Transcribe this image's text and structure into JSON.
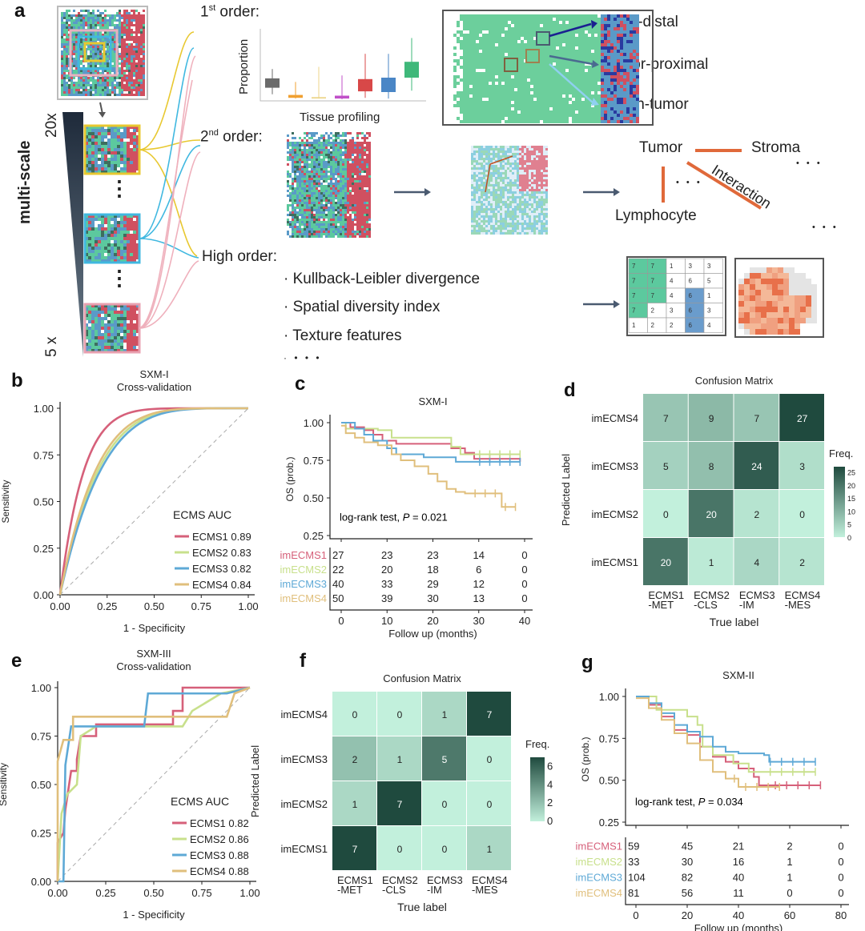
{
  "panel_labels": {
    "a": "a",
    "b": "b",
    "c": "c",
    "d": "d",
    "e": "e",
    "f": "f",
    "g": "g"
  },
  "panel_a": {
    "first_order": {
      "num": "1",
      "sup": "st",
      "text": " order:"
    },
    "second_order": {
      "num": "2",
      "sup": "nd",
      "text": " order:"
    },
    "high_order": "High order:",
    "scale_label": "multi-scale",
    "scale_top": "20x",
    "scale_bottom": "5 x",
    "ellipsis_vertical": "⋮",
    "boxplot_ylabel": "Proportion",
    "boxplot_xlabel": "Tissue profiling",
    "boxplot_colors": [
      "#6b6b6b",
      "#f0a030",
      "#ecd58a",
      "#c050c8",
      "#d84848",
      "#4a86c6",
      "#3fb87a"
    ],
    "region_labels": [
      "Tumor-distal",
      "Tumor-proximal",
      "Within-tumor"
    ],
    "interaction": {
      "tumor": "Tumor",
      "stroma": "Stroma",
      "lymphocyte": "Lymphocyte",
      "interaction": "Interaction",
      "dots": "• • •"
    },
    "high_order_items": [
      "· Kullback-Leibler divergence",
      "· Spatial diversity index",
      "· Texture features",
      "·  •  •  •"
    ],
    "texture_grid": [
      [
        7,
        7,
        1,
        3,
        3
      ],
      [
        7,
        7,
        4,
        6,
        5
      ],
      [
        7,
        7,
        4,
        6,
        1
      ],
      [
        7,
        2,
        3,
        6,
        3
      ],
      [
        1,
        2,
        2,
        6,
        4
      ]
    ],
    "colors": {
      "tumor": "#d05060",
      "green": "#5cc99e",
      "blue": "#5a9ac8",
      "orange": "#e0693a",
      "arrow": "#4a5a70",
      "yellow": "#e8c830",
      "cyan": "#40b8e0",
      "pink": "#e8a0b0"
    }
  },
  "chart_data": [
    {
      "id": "b",
      "type": "line",
      "title": "SXM-I",
      "subtitle": "Cross-validation",
      "xlabel": "1 - Specificity",
      "ylabel": "Sensitivity",
      "xlim": [
        0,
        1
      ],
      "ylim": [
        0,
        1
      ],
      "xticks": [
        "0.00",
        "0.25",
        "0.50",
        "0.75",
        "1.00"
      ],
      "yticks": [
        "0.00",
        "0.25",
        "0.50",
        "0.75",
        "1.00"
      ],
      "legend_title": "ECMS AUC",
      "legend_position": "bottom-right",
      "series": [
        {
          "name": "ECMS1 0.89",
          "auc": 0.89,
          "color": "#d6607a"
        },
        {
          "name": "ECMS2 0.83",
          "auc": 0.83,
          "color": "#c8e08c"
        },
        {
          "name": "ECMS3 0.82",
          "auc": 0.82,
          "color": "#5ea9d6"
        },
        {
          "name": "ECMS4 0.84",
          "auc": 0.84,
          "color": "#e0bf7c"
        }
      ]
    },
    {
      "id": "c",
      "type": "line",
      "title": "SXM-I",
      "xlabel": "Follow up (months)",
      "ylabel": "OS (prob.)",
      "xlim": [
        0,
        40
      ],
      "ylim": [
        0.25,
        1
      ],
      "xticks": [
        "0",
        "10",
        "20",
        "30",
        "40"
      ],
      "yticks": [
        "0.25",
        "0.50",
        "0.75",
        "1.00"
      ],
      "annotation": {
        "prefix": "log-rank test, ",
        "p": "P",
        "suffix": " = 0.021"
      },
      "series": [
        {
          "name": "imECMS1",
          "color": "#d6607a",
          "risk": [
            27,
            23,
            23,
            14,
            0
          ],
          "points": [
            [
              0,
              1
            ],
            [
              2,
              0.97
            ],
            [
              5,
              0.95
            ],
            [
              7,
              0.92
            ],
            [
              9,
              0.88
            ],
            [
              12,
              0.86
            ],
            [
              24,
              0.83
            ],
            [
              27,
              0.8
            ],
            [
              29,
              0.76
            ],
            [
              39,
              0.74
            ]
          ]
        },
        {
          "name": "imECMS2",
          "color": "#c8e08c",
          "risk": [
            22,
            20,
            18,
            6,
            0
          ],
          "points": [
            [
              0,
              1
            ],
            [
              1,
              0.96
            ],
            [
              8,
              0.95
            ],
            [
              11,
              0.9
            ],
            [
              24,
              0.84
            ],
            [
              26,
              0.79
            ],
            [
              39,
              0.79
            ]
          ]
        },
        {
          "name": "imECMS3",
          "color": "#5ea9d6",
          "risk": [
            40,
            33,
            29,
            12,
            0
          ],
          "points": [
            [
              0,
              1
            ],
            [
              3,
              0.96
            ],
            [
              5,
              0.92
            ],
            [
              7,
              0.88
            ],
            [
              10,
              0.83
            ],
            [
              12,
              0.79
            ],
            [
              18,
              0.77
            ],
            [
              25,
              0.74
            ],
            [
              39,
              0.74
            ]
          ]
        },
        {
          "name": "imECMS4",
          "color": "#e0bf7c",
          "risk": [
            50,
            39,
            30,
            13,
            0
          ],
          "points": [
            [
              0,
              0.98
            ],
            [
              1,
              0.93
            ],
            [
              3,
              0.9
            ],
            [
              5,
              0.87
            ],
            [
              8,
              0.85
            ],
            [
              11,
              0.79
            ],
            [
              13,
              0.75
            ],
            [
              16,
              0.71
            ],
            [
              19,
              0.66
            ],
            [
              21,
              0.61
            ],
            [
              23,
              0.56
            ],
            [
              25,
              0.54
            ],
            [
              27,
              0.53
            ],
            [
              35,
              0.44
            ],
            [
              38,
              0.44
            ]
          ]
        }
      ]
    },
    {
      "id": "d",
      "type": "heatmap",
      "title": "Confusion Matrix",
      "xlabel": "True label",
      "ylabel": "Predicted Label",
      "x_categories": [
        [
          "ECMS1",
          "-MET"
        ],
        [
          "ECMS2",
          "-CLS"
        ],
        [
          "ECMS3",
          "-IM"
        ],
        [
          "ECMS4",
          "-MES"
        ]
      ],
      "y_categories": [
        "imECMS4",
        "imECMS3",
        "imECMS2",
        "imECMS1"
      ],
      "values": [
        [
          7,
          9,
          7,
          27
        ],
        [
          5,
          8,
          24,
          3
        ],
        [
          0,
          20,
          2,
          0
        ],
        [
          20,
          1,
          4,
          2
        ]
      ],
      "legend_title": "Freq.",
      "legend_ticks": [
        "25",
        "20",
        "15",
        "10",
        "5",
        "0"
      ],
      "range": [
        0,
        27
      ]
    },
    {
      "id": "e",
      "type": "line",
      "title": "SXM-III",
      "subtitle": "Cross-validation",
      "xlabel": "1 - Specificity",
      "ylabel": "Sensitivity",
      "xlim": [
        0,
        1
      ],
      "ylim": [
        0,
        1
      ],
      "xticks": [
        "0.00",
        "0.25",
        "0.50",
        "0.75",
        "1.00"
      ],
      "yticks": [
        "0.00",
        "0.25",
        "0.50",
        "0.75",
        "1.00"
      ],
      "legend_title": "ECMS AUC",
      "legend_position": "bottom-right",
      "series": [
        {
          "name": "ECMS1 0.82",
          "color": "#d6607a",
          "points": [
            [
              0,
              0
            ],
            [
              0,
              0.2
            ],
            [
              0.03,
              0.25
            ],
            [
              0.04,
              0.37
            ],
            [
              0.07,
              0.57
            ],
            [
              0.1,
              0.57
            ],
            [
              0.1,
              0.63
            ],
            [
              0.12,
              0.75
            ],
            [
              0.2,
              0.75
            ],
            [
              0.2,
              0.81
            ],
            [
              0.6,
              0.81
            ],
            [
              0.6,
              0.88
            ],
            [
              0.65,
              0.88
            ],
            [
              0.65,
              1
            ],
            [
              1,
              1
            ]
          ]
        },
        {
          "name": "ECMS2 0.86",
          "color": "#c8e08c",
          "points": [
            [
              0,
              0
            ],
            [
              0.02,
              0.35
            ],
            [
              0.05,
              0.45
            ],
            [
              0.1,
              0.5
            ],
            [
              0.12,
              0.75
            ],
            [
              0.2,
              0.8
            ],
            [
              0.65,
              0.8
            ],
            [
              0.7,
              0.88
            ],
            [
              0.85,
              0.97
            ],
            [
              1,
              1
            ]
          ]
        },
        {
          "name": "ECMS3 0.88",
          "color": "#5ea9d6",
          "points": [
            [
              0,
              0
            ],
            [
              0.03,
              0
            ],
            [
              0.04,
              0.6
            ],
            [
              0.07,
              0.8
            ],
            [
              0.45,
              0.8
            ],
            [
              0.47,
              0.97
            ],
            [
              0.88,
              0.97
            ],
            [
              1,
              1
            ]
          ]
        },
        {
          "name": "ECMS4 0.88",
          "color": "#e0bf7c",
          "points": [
            [
              0,
              0
            ],
            [
              0,
              0.62
            ],
            [
              0.03,
              0.73
            ],
            [
              0.08,
              0.73
            ],
            [
              0.08,
              0.85
            ],
            [
              0.88,
              0.85
            ],
            [
              0.92,
              0.97
            ],
            [
              1,
              1
            ]
          ]
        }
      ]
    },
    {
      "id": "f",
      "type": "heatmap",
      "title": "Confusion Matrix",
      "xlabel": "True label",
      "ylabel": "Predicted Label",
      "x_categories": [
        [
          "ECMS1",
          "-MET"
        ],
        [
          "ECMS2",
          "-CLS"
        ],
        [
          "ECMS3",
          "-IM"
        ],
        [
          "ECMS4",
          "-MES"
        ]
      ],
      "y_categories": [
        "imECMS4",
        "imECMS3",
        "imECMS2",
        "imECMS1"
      ],
      "values": [
        [
          0,
          0,
          1,
          7
        ],
        [
          2,
          1,
          5,
          0
        ],
        [
          1,
          7,
          0,
          0
        ],
        [
          7,
          0,
          0,
          1
        ]
      ],
      "legend_title": "Freq.",
      "legend_ticks": [
        "6",
        "4",
        "2",
        "0"
      ],
      "range": [
        0,
        7
      ]
    },
    {
      "id": "g",
      "type": "line",
      "title": "SXM-II",
      "xlabel": "Follow up (months)",
      "ylabel": "OS (prob.)",
      "xlim": [
        0,
        80
      ],
      "ylim": [
        0.25,
        1
      ],
      "xticks": [
        "0",
        "20",
        "40",
        "60",
        "80"
      ],
      "yticks": [
        "0.25",
        "0.50",
        "0.75",
        "1.00"
      ],
      "annotation": {
        "prefix": "log-rank test, ",
        "p": "P",
        "suffix": " = 0.034"
      },
      "series": [
        {
          "name": "imECMS1",
          "color": "#d6607a",
          "risk": [
            59,
            45,
            21,
            2,
            0
          ],
          "points": [
            [
              0,
              1
            ],
            [
              5,
              0.95
            ],
            [
              10,
              0.88
            ],
            [
              15,
              0.8
            ],
            [
              20,
              0.77
            ],
            [
              25,
              0.7
            ],
            [
              30,
              0.64
            ],
            [
              35,
              0.61
            ],
            [
              40,
              0.57
            ],
            [
              46,
              0.52
            ],
            [
              48,
              0.47
            ],
            [
              72,
              0.47
            ]
          ]
        },
        {
          "name": "imECMS2",
          "color": "#c8e08c",
          "risk": [
            33,
            30,
            16,
            1,
            0
          ],
          "points": [
            [
              0,
              1
            ],
            [
              8,
              0.92
            ],
            [
              20,
              0.88
            ],
            [
              24,
              0.83
            ],
            [
              26,
              0.7
            ],
            [
              30,
              0.65
            ],
            [
              38,
              0.6
            ],
            [
              44,
              0.55
            ],
            [
              70,
              0.55
            ]
          ]
        },
        {
          "name": "imECMS3",
          "color": "#5ea9d6",
          "risk": [
            104,
            82,
            40,
            1,
            0
          ],
          "points": [
            [
              0,
              1
            ],
            [
              5,
              0.96
            ],
            [
              10,
              0.9
            ],
            [
              15,
              0.83
            ],
            [
              20,
              0.79
            ],
            [
              25,
              0.76
            ],
            [
              30,
              0.7
            ],
            [
              35,
              0.67
            ],
            [
              40,
              0.66
            ],
            [
              50,
              0.65
            ],
            [
              52,
              0.61
            ],
            [
              70,
              0.61
            ]
          ]
        },
        {
          "name": "imECMS4",
          "color": "#e0bf7c",
          "risk": [
            81,
            56,
            11,
            0,
            0
          ],
          "points": [
            [
              0,
              0.99
            ],
            [
              5,
              0.93
            ],
            [
              10,
              0.86
            ],
            [
              15,
              0.78
            ],
            [
              20,
              0.72
            ],
            [
              25,
              0.62
            ],
            [
              30,
              0.55
            ],
            [
              35,
              0.51
            ],
            [
              40,
              0.46
            ],
            [
              56,
              0.46
            ]
          ]
        }
      ]
    }
  ]
}
